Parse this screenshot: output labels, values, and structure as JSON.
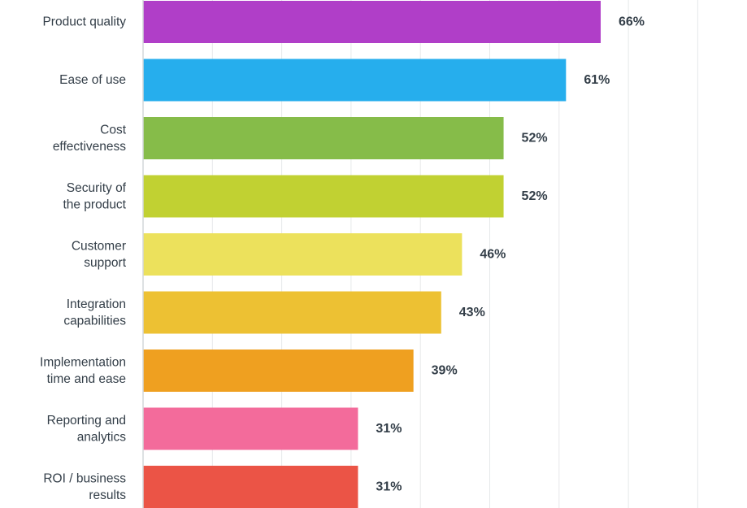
{
  "chart_data": {
    "type": "bar",
    "orientation": "horizontal",
    "title": "",
    "xlabel": "",
    "ylabel": "",
    "xlim": [
      0,
      80
    ],
    "grid": true,
    "value_suffix": "%",
    "categories": [
      "Product quality",
      "Ease of use",
      "Cost effectiveness",
      "Security of the product",
      "Customer support",
      "Integration capabilities",
      "Implementation time and ease",
      "Reporting and analytics",
      "ROI / business results"
    ],
    "category_lines": [
      [
        "Product quality"
      ],
      [
        "Ease of use"
      ],
      [
        "Cost",
        "effectiveness"
      ],
      [
        "Security of",
        "the product"
      ],
      [
        "Customer",
        "support"
      ],
      [
        "Integration",
        "capabilities"
      ],
      [
        "Implementation",
        "time and ease"
      ],
      [
        "Reporting and",
        "analytics"
      ],
      [
        "ROI / business",
        "results"
      ]
    ],
    "values": [
      66,
      61,
      52,
      52,
      46,
      43,
      39,
      31,
      31
    ],
    "value_labels": [
      "66%",
      "61%",
      "52%",
      "52%",
      "46%",
      "43%",
      "39%",
      "31%",
      "31%"
    ],
    "colors": [
      "#b03ec8",
      "#26aeed",
      "#86bc49",
      "#c1d132",
      "#ece15c",
      "#edc133",
      "#efa020",
      "#f36b9b",
      "#eb5446"
    ]
  }
}
